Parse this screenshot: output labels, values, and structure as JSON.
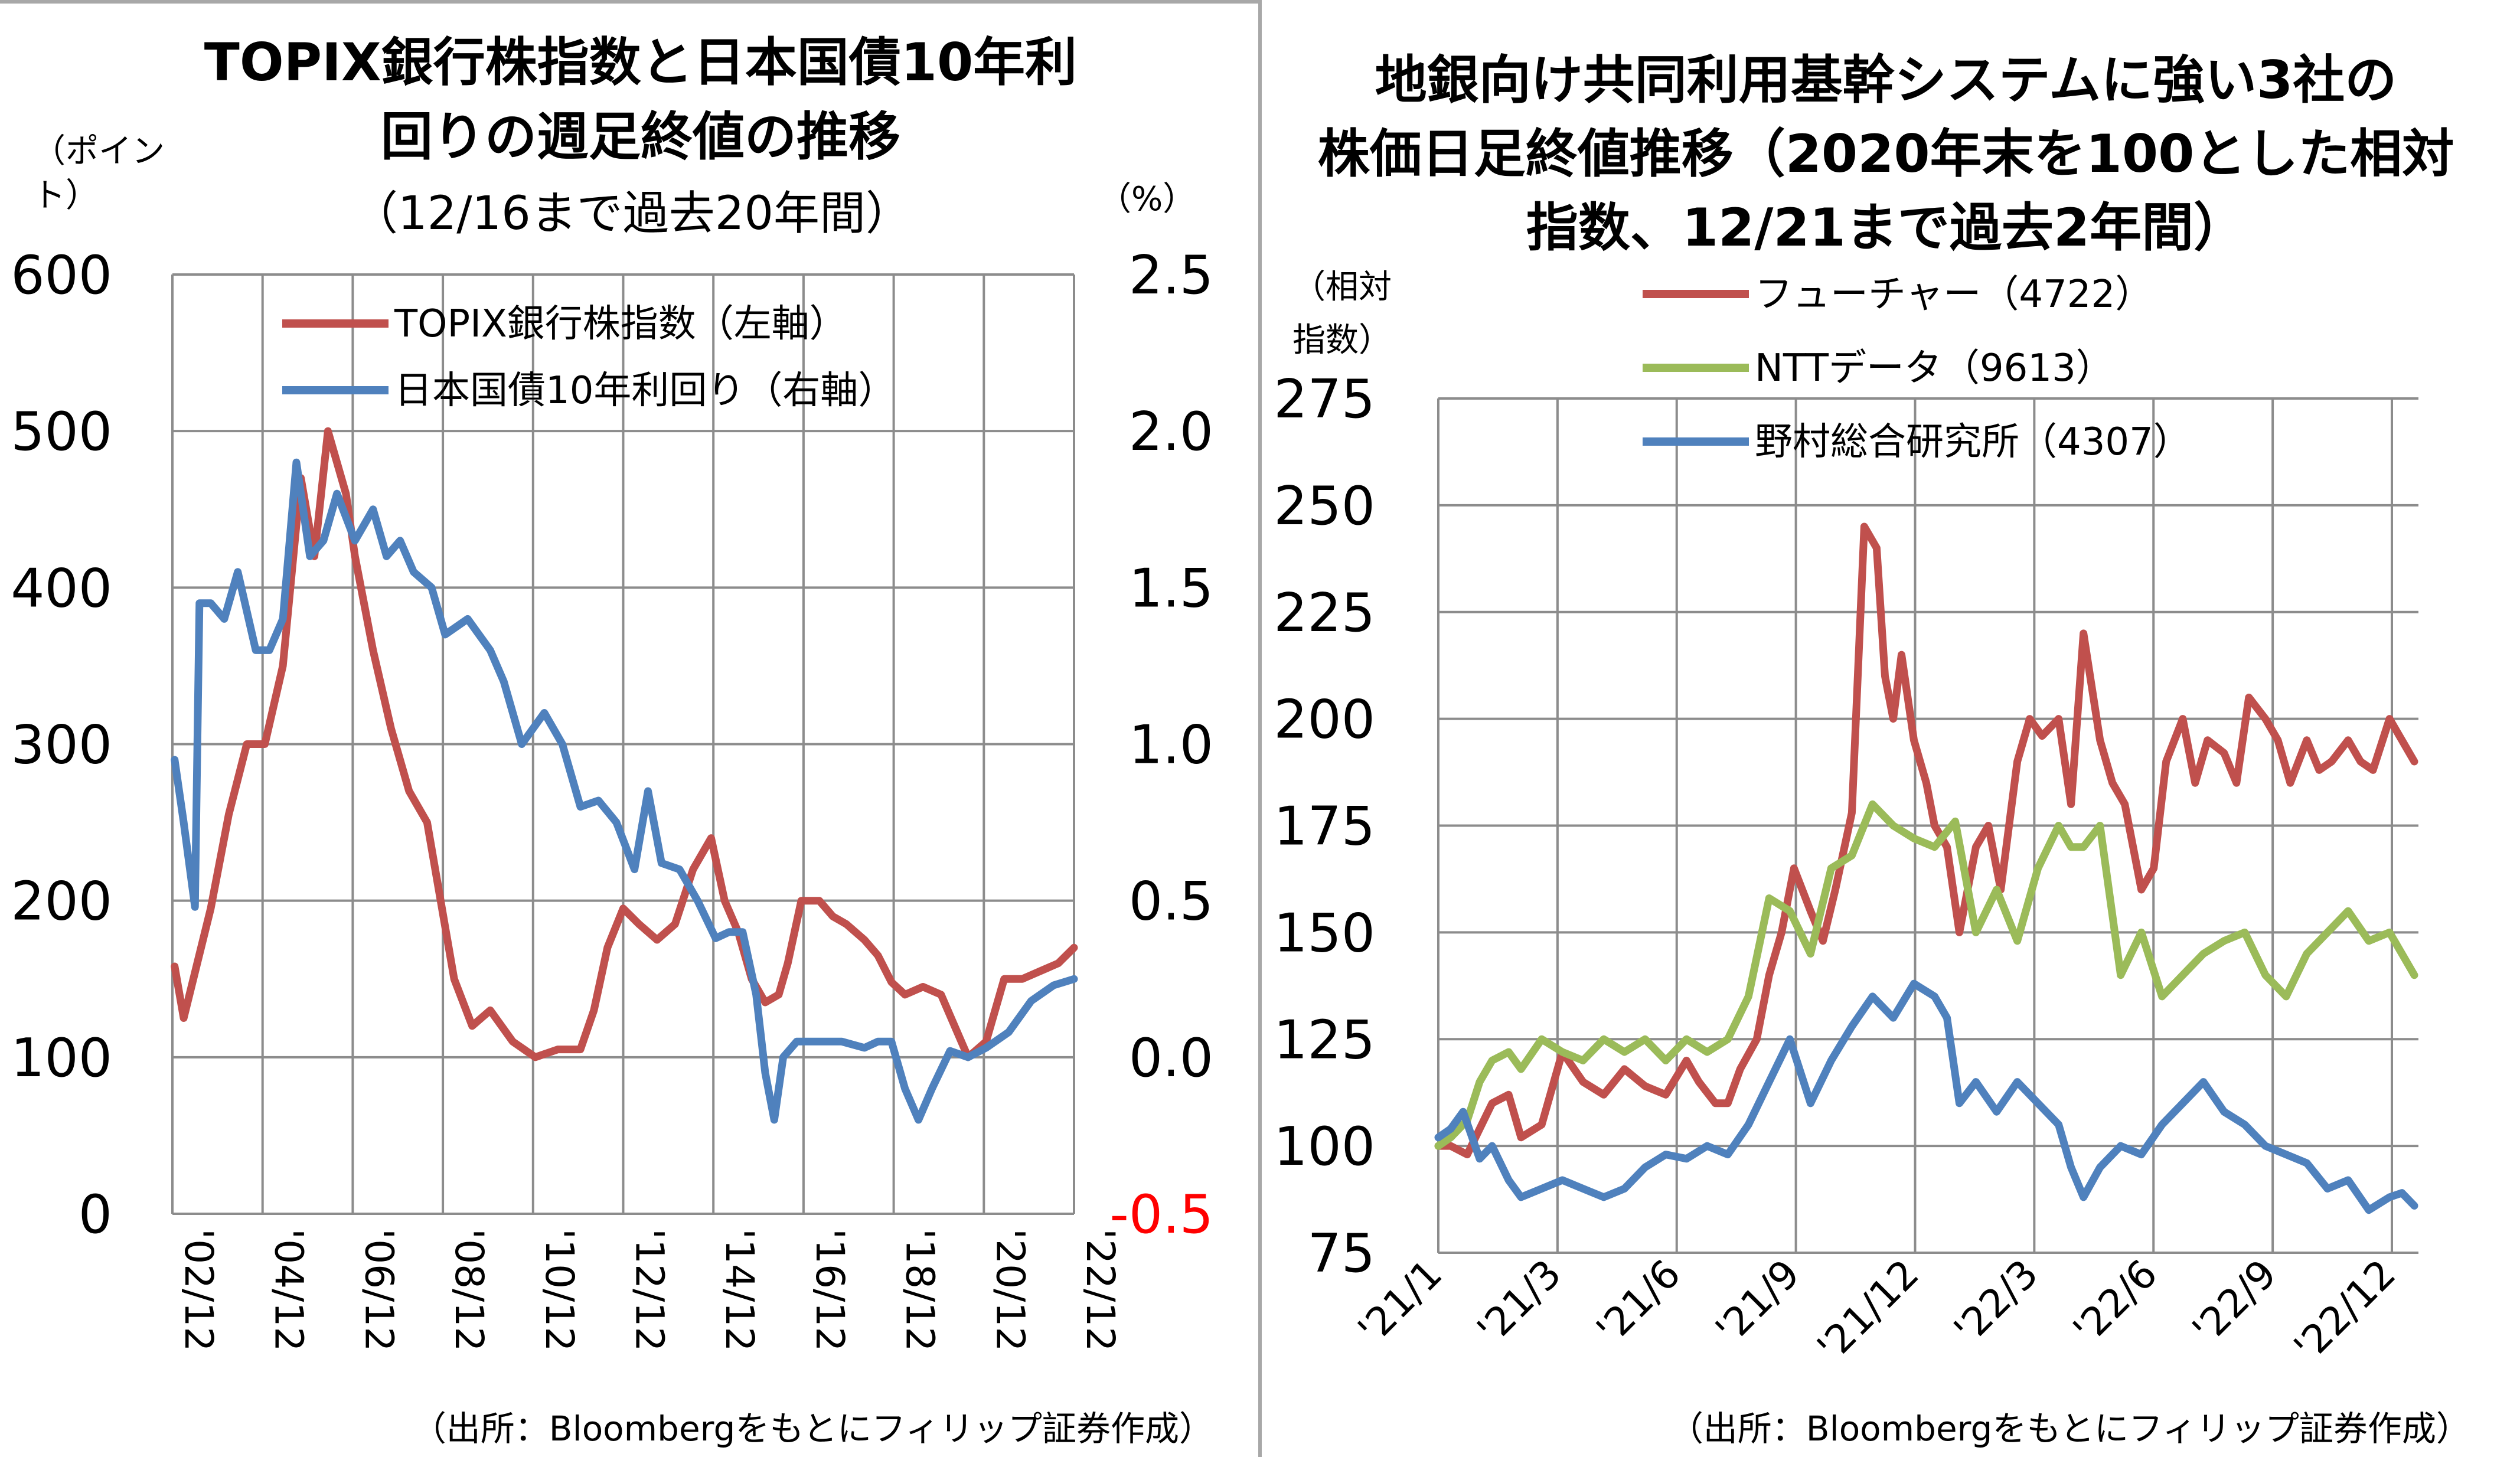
{
  "chart_data": [
    {
      "type": "line",
      "title": "TOPIX銀行株指数と日本国債10年利回りの週足終値の推移",
      "title_line1": "TOPIX銀行株指数と日本国債10年利",
      "title_line2": "回りの週足終値の推移",
      "subtitle": "（12/16まで過去20年間）",
      "left_axis_unit": [
        "（ポイン",
        "ト）"
      ],
      "right_axis_unit": "（%）",
      "ylim_left": [
        0,
        600
      ],
      "yticks_left": [
        "600",
        "500",
        "400",
        "300",
        "200",
        "100",
        "0"
      ],
      "ylim_right": [
        -0.5,
        2.5
      ],
      "yticks_right": [
        "2.5",
        "2.0",
        "1.5",
        "1.0",
        "0.5",
        "0.0",
        "-0.5"
      ],
      "xticks": [
        "'02/12",
        "'04/12",
        "'06/12",
        "'08/12",
        "'10/12",
        "'12/12",
        "'14/12",
        "'16/12",
        "'18/12",
        "'20/12",
        "'22/12"
      ],
      "x_start": 2002.95,
      "x_end": 2022.95,
      "source": "（出所：Bloombergをもとにフィリップ証券作成）",
      "series": [
        {
          "name": "TOPIX銀行株指数（左軸）",
          "axis": "left",
          "color": "#c0504d",
          "x": [
            2003.0,
            2003.2,
            2003.5,
            2003.8,
            2004.2,
            2004.6,
            2005.0,
            2005.4,
            2005.8,
            2006.1,
            2006.4,
            2006.8,
            2007.0,
            2007.4,
            2007.8,
            2008.2,
            2008.6,
            2008.9,
            2009.2,
            2009.6,
            2010.0,
            2010.5,
            2011.0,
            2011.5,
            2012.0,
            2012.3,
            2012.6,
            2012.95,
            2013.3,
            2013.7,
            2014.1,
            2014.5,
            2014.9,
            2015.2,
            2015.5,
            2015.8,
            2016.1,
            2016.4,
            2016.6,
            2016.9,
            2017.3,
            2017.6,
            2017.9,
            2018.3,
            2018.6,
            2018.9,
            2019.2,
            2019.6,
            2020.0,
            2020.3,
            2020.6,
            2021.0,
            2021.4,
            2021.8,
            2022.2,
            2022.6,
            2022.95
          ],
          "values": [
            158,
            125,
            160,
            195,
            255,
            300,
            300,
            350,
            470,
            420,
            500,
            460,
            420,
            360,
            310,
            270,
            250,
            200,
            150,
            120,
            130,
            110,
            100,
            105,
            105,
            130,
            170,
            195,
            185,
            175,
            185,
            220,
            240,
            200,
            180,
            150,
            135,
            140,
            160,
            200,
            200,
            190,
            185,
            175,
            165,
            148,
            140,
            145,
            140,
            120,
            100,
            110,
            150,
            150,
            155,
            160,
            170
          ]
        },
        {
          "name": "日本国債10年利回り（右軸）",
          "axis": "right",
          "color": "#4f81bd",
          "x": [
            2003.0,
            2003.2,
            2003.45,
            2003.55,
            2003.8,
            2004.1,
            2004.4,
            2004.8,
            2005.1,
            2005.4,
            2005.7,
            2006.0,
            2006.3,
            2006.6,
            2007.0,
            2007.4,
            2007.7,
            2008.0,
            2008.3,
            2008.7,
            2009.0,
            2009.5,
            2010.0,
            2010.3,
            2010.7,
            2011.2,
            2011.6,
            2012.0,
            2012.4,
            2012.8,
            2013.2,
            2013.5,
            2013.8,
            2014.2,
            2014.6,
            2015.0,
            2015.3,
            2015.6,
            2015.9,
            2016.1,
            2016.3,
            2016.5,
            2016.8,
            2017.3,
            2017.8,
            2018.3,
            2018.6,
            2018.9,
            2019.2,
            2019.5,
            2019.8,
            2020.2,
            2020.6,
            2021.0,
            2021.5,
            2022.0,
            2022.5,
            2022.95
          ],
          "values": [
            0.95,
            0.75,
            0.48,
            1.45,
            1.45,
            1.4,
            1.55,
            1.3,
            1.3,
            1.4,
            1.9,
            1.6,
            1.65,
            1.8,
            1.65,
            1.75,
            1.6,
            1.65,
            1.55,
            1.5,
            1.35,
            1.4,
            1.3,
            1.2,
            1.0,
            1.1,
            1.0,
            0.8,
            0.82,
            0.75,
            0.6,
            0.85,
            0.62,
            0.6,
            0.5,
            0.38,
            0.4,
            0.4,
            0.2,
            -0.05,
            -0.2,
            0.0,
            0.05,
            0.05,
            0.05,
            0.03,
            0.05,
            0.05,
            -0.1,
            -0.2,
            -0.1,
            0.02,
            0.0,
            0.03,
            0.08,
            0.18,
            0.23,
            0.25
          ]
        }
      ]
    },
    {
      "type": "line",
      "title": "地銀向け共同利用基幹システムに強い3社の株価日足終値推移（2020年末を100とした相対指数、12/21まで過去2年間）",
      "title_line1": "地銀向け共同利用基幹システムに強い3社の",
      "title_line2": "株価日足終値推移（2020年末を100とした相対",
      "title_line3": "指数、12/21まで過去2年間）",
      "y_axis_unit": [
        "（相対",
        "指数）"
      ],
      "ylim": [
        75,
        275
      ],
      "yticks": [
        "275",
        "250",
        "225",
        "200",
        "175",
        "150",
        "125",
        "100",
        "75"
      ],
      "xticks": [
        "'21/1",
        "'21/3",
        "'21/6",
        "'21/9",
        "'21/12",
        "'22/3",
        "'22/6",
        "'22/9",
        "'22/12"
      ],
      "x_start": 0.0,
      "x_end": 23.7,
      "source": "（出所：Bloombergをもとにフィリップ証券作成）",
      "series": [
        {
          "name": "フューチャー（4722）",
          "color": "#c0504d",
          "x": [
            0.0,
            0.3,
            0.7,
            1.0,
            1.3,
            1.7,
            2.0,
            2.5,
            3.0,
            3.5,
            4.0,
            4.5,
            5.0,
            5.5,
            6.0,
            6.3,
            6.7,
            7.0,
            7.3,
            7.7,
            8.0,
            8.3,
            8.6,
            9.0,
            9.3,
            9.6,
            10.0,
            10.3,
            10.6,
            10.8,
            11.0,
            11.2,
            11.5,
            11.8,
            12.0,
            12.3,
            12.6,
            13.0,
            13.3,
            13.6,
            14.0,
            14.3,
            14.6,
            15.0,
            15.3,
            15.6,
            16.0,
            16.3,
            16.6,
            17.0,
            17.3,
            17.6,
            18.0,
            18.3,
            18.6,
            19.0,
            19.3,
            19.6,
            20.0,
            20.3,
            20.6,
            21.0,
            21.3,
            21.6,
            22.0,
            22.3,
            22.6,
            23.0,
            23.3,
            23.6
          ],
          "values": [
            100,
            100,
            98,
            104,
            110,
            112,
            102,
            105,
            122,
            115,
            112,
            118,
            114,
            112,
            120,
            115,
            110,
            110,
            118,
            125,
            140,
            150,
            165,
            155,
            148,
            160,
            178,
            245,
            240,
            210,
            200,
            215,
            195,
            185,
            175,
            170,
            150,
            170,
            175,
            160,
            190,
            200,
            196,
            200,
            180,
            220,
            195,
            185,
            180,
            160,
            165,
            190,
            200,
            185,
            195,
            192,
            185,
            205,
            200,
            195,
            185,
            195,
            188,
            190,
            195,
            190,
            188,
            200,
            195,
            190
          ]
        },
        {
          "name": "NTTデータ（9613）",
          "color": "#9bbb59",
          "x": [
            0.0,
            0.3,
            0.7,
            1.0,
            1.3,
            1.7,
            2.0,
            2.5,
            3.0,
            3.5,
            4.0,
            4.5,
            5.0,
            5.5,
            6.0,
            6.5,
            7.0,
            7.5,
            8.0,
            8.5,
            9.0,
            9.5,
            10.0,
            10.5,
            11.0,
            11.5,
            12.0,
            12.5,
            13.0,
            13.5,
            14.0,
            14.5,
            15.0,
            15.3,
            15.6,
            16.0,
            16.5,
            17.0,
            17.5,
            18.0,
            18.5,
            19.0,
            19.5,
            20.0,
            20.5,
            21.0,
            21.5,
            22.0,
            22.5,
            23.0,
            23.3,
            23.6
          ],
          "values": [
            100,
            102,
            106,
            115,
            120,
            122,
            118,
            125,
            122,
            120,
            125,
            122,
            125,
            120,
            125,
            122,
            125,
            135,
            158,
            155,
            145,
            165,
            168,
            180,
            175,
            172,
            170,
            176,
            150,
            160,
            148,
            165,
            175,
            170,
            170,
            175,
            140,
            150,
            135,
            140,
            145,
            148,
            150,
            140,
            135,
            145,
            150,
            155,
            148,
            150,
            145,
            140
          ]
        },
        {
          "name": "野村総合研究所（4307）",
          "color": "#4f81bd",
          "x": [
            0.0,
            0.3,
            0.6,
            1.0,
            1.3,
            1.7,
            2.0,
            2.5,
            3.0,
            3.5,
            4.0,
            4.5,
            5.0,
            5.5,
            6.0,
            6.5,
            7.0,
            7.5,
            8.0,
            8.5,
            9.0,
            9.5,
            10.0,
            10.5,
            11.0,
            11.5,
            12.0,
            12.3,
            12.6,
            13.0,
            13.5,
            14.0,
            14.5,
            15.0,
            15.3,
            15.6,
            16.0,
            16.5,
            17.0,
            17.5,
            18.0,
            18.5,
            19.0,
            19.5,
            20.0,
            20.5,
            21.0,
            21.5,
            22.0,
            22.5,
            23.0,
            23.3,
            23.6
          ],
          "values": [
            102,
            104,
            108,
            97,
            100,
            92,
            88,
            90,
            92,
            90,
            88,
            90,
            95,
            98,
            97,
            100,
            98,
            105,
            115,
            125,
            110,
            120,
            128,
            135,
            130,
            138,
            135,
            130,
            110,
            115,
            108,
            115,
            110,
            105,
            95,
            88,
            95,
            100,
            98,
            105,
            110,
            115,
            108,
            105,
            100,
            98,
            96,
            90,
            92,
            85,
            88,
            89,
            86
          ]
        }
      ]
    }
  ]
}
